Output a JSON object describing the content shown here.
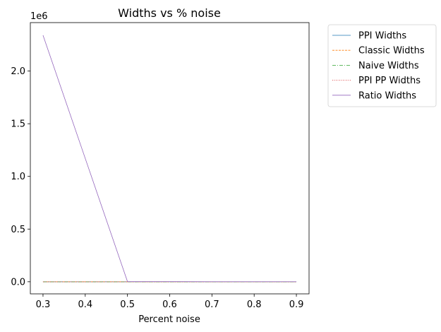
{
  "chart_data": {
    "type": "line",
    "title": "Widths vs % noise",
    "xlabel": "Percent noise",
    "ylabel": "",
    "y_offset_label": "1e6",
    "y_scale": 1000000,
    "xlim": [
      0.27,
      0.93
    ],
    "ylim": [
      -115000,
      2460000
    ],
    "x": [
      0.3,
      0.5,
      0.7,
      0.9
    ],
    "xticks": [
      0.3,
      0.4,
      0.5,
      0.6,
      0.7,
      0.8,
      0.9
    ],
    "xtick_labels": [
      "0.3",
      "0.4",
      "0.5",
      "0.6",
      "0.7",
      "0.8",
      "0.9"
    ],
    "yticks": [
      0,
      500000,
      1000000,
      1500000,
      2000000
    ],
    "ytick_labels": [
      "0.0",
      "0.5",
      "1.0",
      "1.5",
      "2.0"
    ],
    "grid": false,
    "legend_placement": "outside-top-right",
    "series": [
      {
        "name": "PPI Widths",
        "values": [
          5,
          4,
          4,
          4
        ],
        "color": "#1f77b4",
        "dash": ""
      },
      {
        "name": "Classic Widths",
        "values": [
          6,
          5,
          5,
          5
        ],
        "color": "#ff7f0e",
        "dash": "3,1.5"
      },
      {
        "name": "Naive Widths",
        "values": [
          4,
          3,
          3,
          3
        ],
        "color": "#2ca02c",
        "dash": "5,2,1,2"
      },
      {
        "name": "PPI PP Widths",
        "values": [
          5,
          4,
          4,
          4
        ],
        "color": "#d62728",
        "dash": "1,1.5"
      },
      {
        "name": "Ratio Widths",
        "values": [
          2340000,
          2000,
          800,
          500
        ],
        "color": "#9467bd",
        "dash": ""
      }
    ]
  }
}
